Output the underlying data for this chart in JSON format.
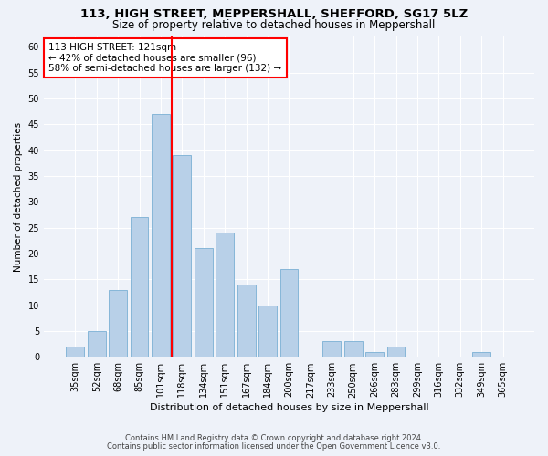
{
  "title1": "113, HIGH STREET, MEPPERSHALL, SHEFFORD, SG17 5LZ",
  "title2": "Size of property relative to detached houses in Meppershall",
  "xlabel": "Distribution of detached houses by size in Meppershall",
  "ylabel": "Number of detached properties",
  "categories": [
    "35sqm",
    "52sqm",
    "68sqm",
    "85sqm",
    "101sqm",
    "118sqm",
    "134sqm",
    "151sqm",
    "167sqm",
    "184sqm",
    "200sqm",
    "217sqm",
    "233sqm",
    "250sqm",
    "266sqm",
    "283sqm",
    "299sqm",
    "316sqm",
    "332sqm",
    "349sqm",
    "365sqm"
  ],
  "values": [
    2,
    5,
    13,
    27,
    47,
    39,
    21,
    24,
    14,
    10,
    17,
    0,
    3,
    3,
    1,
    2,
    0,
    0,
    0,
    1,
    0
  ],
  "bar_color": "#b8d0e8",
  "bar_edge_color": "#7aafd4",
  "vline_x_index": 5,
  "vline_color": "red",
  "annotation_text": "113 HIGH STREET: 121sqm\n← 42% of detached houses are smaller (96)\n58% of semi-detached houses are larger (132) →",
  "annotation_box_color": "white",
  "annotation_box_edge": "red",
  "ylim": [
    0,
    62
  ],
  "yticks": [
    0,
    5,
    10,
    15,
    20,
    25,
    30,
    35,
    40,
    45,
    50,
    55,
    60
  ],
  "footer1": "Contains HM Land Registry data © Crown copyright and database right 2024.",
  "footer2": "Contains public sector information licensed under the Open Government Licence v3.0.",
  "bg_color": "#eef2f9",
  "plot_bg_color": "#eef2f9",
  "title1_fontsize": 9.5,
  "title2_fontsize": 8.5,
  "xlabel_fontsize": 8.0,
  "ylabel_fontsize": 7.5,
  "tick_fontsize": 7.0,
  "annotation_fontsize": 7.5,
  "footer_fontsize": 6.0
}
